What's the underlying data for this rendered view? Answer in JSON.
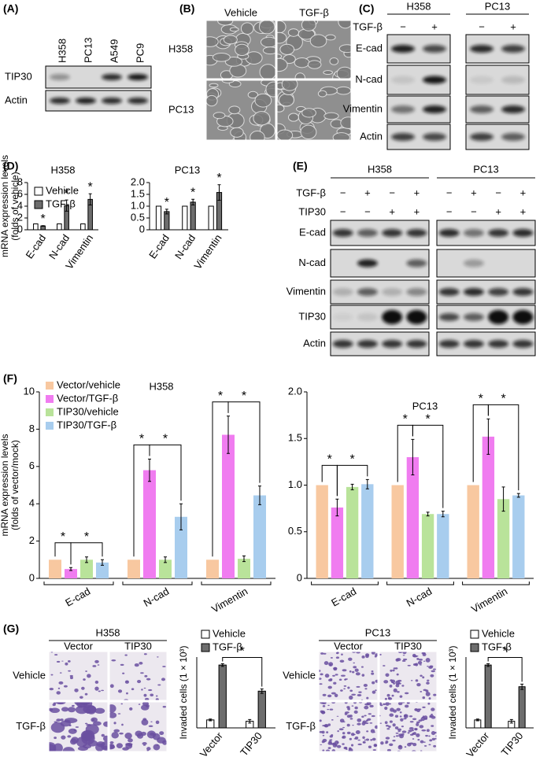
{
  "panels": {
    "A": {
      "label": "(A)",
      "lanes": [
        "H358",
        "PC13",
        "A549",
        "PC9"
      ],
      "rows": [
        "TIP30",
        "Actin"
      ]
    },
    "B": {
      "label": "(B)",
      "columns": [
        "Vehicle",
        "TGF-β"
      ],
      "rows": [
        "H358",
        "PC13"
      ]
    },
    "C": {
      "label": "(C)",
      "groups": [
        "H358",
        "PC13"
      ],
      "treatment": "TGF-β",
      "signs": [
        "−",
        "+",
        "−",
        "+"
      ],
      "rows": [
        "E-cad",
        "N-cad",
        "Vimentin",
        "Actin"
      ]
    },
    "D": {
      "label": "(D)"
    },
    "E": {
      "label": "(E)",
      "groups": [
        "H358",
        "PC13"
      ],
      "treatments": [
        {
          "name": "TGF-β",
          "signs": [
            "−",
            "+",
            "−",
            "+",
            "−",
            "+",
            "−",
            "+"
          ]
        },
        {
          "name": "TIP30",
          "signs": [
            "−",
            "−",
            "+",
            "+",
            "−",
            "−",
            "+",
            "+"
          ]
        }
      ],
      "rows": [
        "E-cad",
        "N-cad",
        "Vimentin",
        "TIP30",
        "Actin"
      ]
    },
    "F": {
      "label": "(F)"
    },
    "G": {
      "label": "(G)",
      "images": [
        {
          "title": "H358",
          "columns": [
            "Vector",
            "TIP30"
          ],
          "rows": [
            "Vehicle",
            "TGF-β"
          ]
        },
        {
          "title": "PC13",
          "columns": [
            "Vector",
            "TIP30"
          ],
          "rows": [
            "Vehicle",
            "TGF-β"
          ]
        }
      ]
    }
  },
  "chart_data": [
    {
      "type": "bar",
      "title": "H358",
      "ylabel": [
        "mRNA expression levels",
        "(folds of vehicle)"
      ],
      "categories": [
        "E-cad",
        "N-cad",
        "Vimentin"
      ],
      "series": [
        {
          "name": "Vehicle",
          "color": "#ffffff",
          "values": [
            1,
            1,
            1
          ]
        },
        {
          "name": "TGF-β",
          "color": "#6d6d6d",
          "values": [
            0.65,
            4.1,
            5.15
          ],
          "errors": [
            0.05,
            0.95,
            0.95
          ]
        }
      ],
      "ylim": [
        0,
        8
      ],
      "yticks": [
        0,
        2,
        4,
        6,
        8
      ],
      "annotations": [
        "*",
        "*",
        "*"
      ]
    },
    {
      "type": "bar",
      "title": "PC13",
      "categories": [
        "E-cad",
        "N-cad",
        "Vimentin"
      ],
      "series": [
        {
          "color": "#ffffff",
          "values": [
            1,
            1,
            1
          ]
        },
        {
          "color": "#6d6d6d",
          "values": [
            0.77,
            1.17,
            1.58
          ],
          "errors": [
            0.1,
            0.12,
            0.33
          ]
        }
      ],
      "ylim": [
        0,
        2
      ],
      "yticks": [
        0,
        0.5,
        {
          "value": 1,
          "label": "1.0"
        },
        1.5,
        {
          "value": 2,
          "label": "2.0"
        }
      ],
      "annotations": [
        "*",
        "*",
        "*"
      ]
    },
    {
      "type": "bar",
      "title": "H358",
      "ylabel": [
        "mRNA expression levels",
        "(folds of vector/mock)"
      ],
      "categories": [
        "E-cad",
        "N-cad",
        "Vimentin"
      ],
      "series": [
        {
          "name": "Vector/vehicle",
          "color": "#f8c8a0",
          "values": [
            1,
            1,
            1
          ]
        },
        {
          "name": "Vector/TGF-β",
          "color": "#f07cf0",
          "values": [
            0.5,
            5.8,
            7.7
          ],
          "errors": [
            0.08,
            0.6,
            1.0
          ]
        },
        {
          "name": "TIP30/vehicle",
          "color": "#b9e39a",
          "values": [
            1.0,
            1.0,
            1.05
          ],
          "errors": [
            0.15,
            0.15,
            0.15
          ]
        },
        {
          "name": "TIP30/TGF-β",
          "color": "#a8cdee",
          "values": [
            0.85,
            3.3,
            4.45
          ],
          "errors": [
            0.15,
            0.7,
            0.5
          ]
        }
      ],
      "ylim": [
        0,
        10
      ],
      "yticks": [
        0,
        2,
        4,
        6,
        8,
        10
      ],
      "annotations": [
        "*",
        "*",
        "*",
        "*",
        "*",
        "*"
      ]
    },
    {
      "type": "bar",
      "title": "PC13",
      "categories": [
        "E-cad",
        "N-cad",
        "Vimentin"
      ],
      "series": [
        {
          "color": "#f8c8a0",
          "values": [
            1,
            1,
            1
          ]
        },
        {
          "color": "#f07cf0",
          "values": [
            0.76,
            1.3,
            1.52
          ],
          "errors": [
            0.09,
            0.19,
            0.19
          ]
        },
        {
          "color": "#b9e39a",
          "values": [
            0.98,
            0.69,
            0.85
          ],
          "errors": [
            0.03,
            0.02,
            0.13
          ]
        },
        {
          "color": "#a8cdee",
          "values": [
            1.01,
            0.69,
            0.89
          ],
          "errors": [
            0.05,
            0.03,
            0.02
          ]
        }
      ],
      "ylim": [
        0,
        2
      ],
      "yticks": [
        0,
        0.5,
        {
          "value": 1,
          "label": "1.0"
        },
        1.5,
        {
          "value": 2,
          "label": "2.0"
        }
      ],
      "annotations": [
        "*",
        "*",
        "*",
        "*",
        "*",
        "*"
      ]
    },
    {
      "type": "bar",
      "ylabel": "Invaded cells (1 × 10³)",
      "categories": [
        "Vector",
        "TIP30"
      ],
      "series": [
        {
          "name": "Vehicle",
          "color": "#ffffff",
          "values": [
            0.18,
            0.15
          ],
          "errors": [
            0.02,
            0.04
          ]
        },
        {
          "name": "TGF-β",
          "color": "#6d6d6d",
          "values": [
            1.42,
            0.83
          ],
          "errors": [
            0.03,
            0.05
          ]
        }
      ],
      "ylim": [
        0,
        1.6
      ],
      "annotations": [
        "*"
      ]
    },
    {
      "type": "bar",
      "ylabel": "Invaded cells (1 × 10³)",
      "categories": [
        "Vector",
        "TIP30"
      ],
      "series": [
        {
          "name": "Vehicle",
          "color": "#ffffff",
          "values": [
            0.18,
            0.15
          ],
          "errors": [
            0.02,
            0.04
          ]
        },
        {
          "name": "TGF-β",
          "color": "#6d6d6d",
          "values": [
            1.42,
            0.93
          ],
          "errors": [
            0.03,
            0.06
          ]
        }
      ],
      "ylim": [
        0,
        1.6
      ],
      "annotations": [
        "*"
      ]
    }
  ]
}
